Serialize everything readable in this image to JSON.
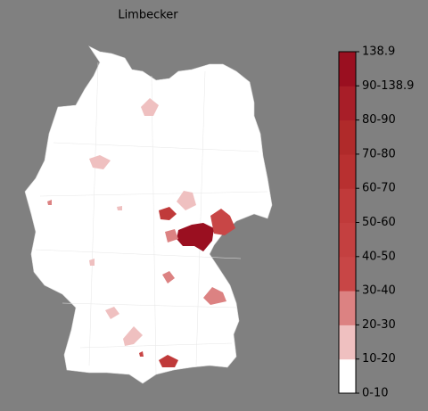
{
  "title": "Limbecker",
  "legend": {
    "labels": [
      "0-10",
      "10-20",
      "20-30",
      "30-40",
      "40-50",
      "50-60",
      "60-70",
      "70-80",
      "80-90",
      "90-138.9",
      "138.9"
    ],
    "colors": [
      "#ffffff",
      "#efc0c0",
      "#dc8282",
      "#c84646",
      "#c44040",
      "#c03a3a",
      "#b83030",
      "#b02a2a",
      "#a81e28",
      "#9a0f20"
    ]
  }
}
